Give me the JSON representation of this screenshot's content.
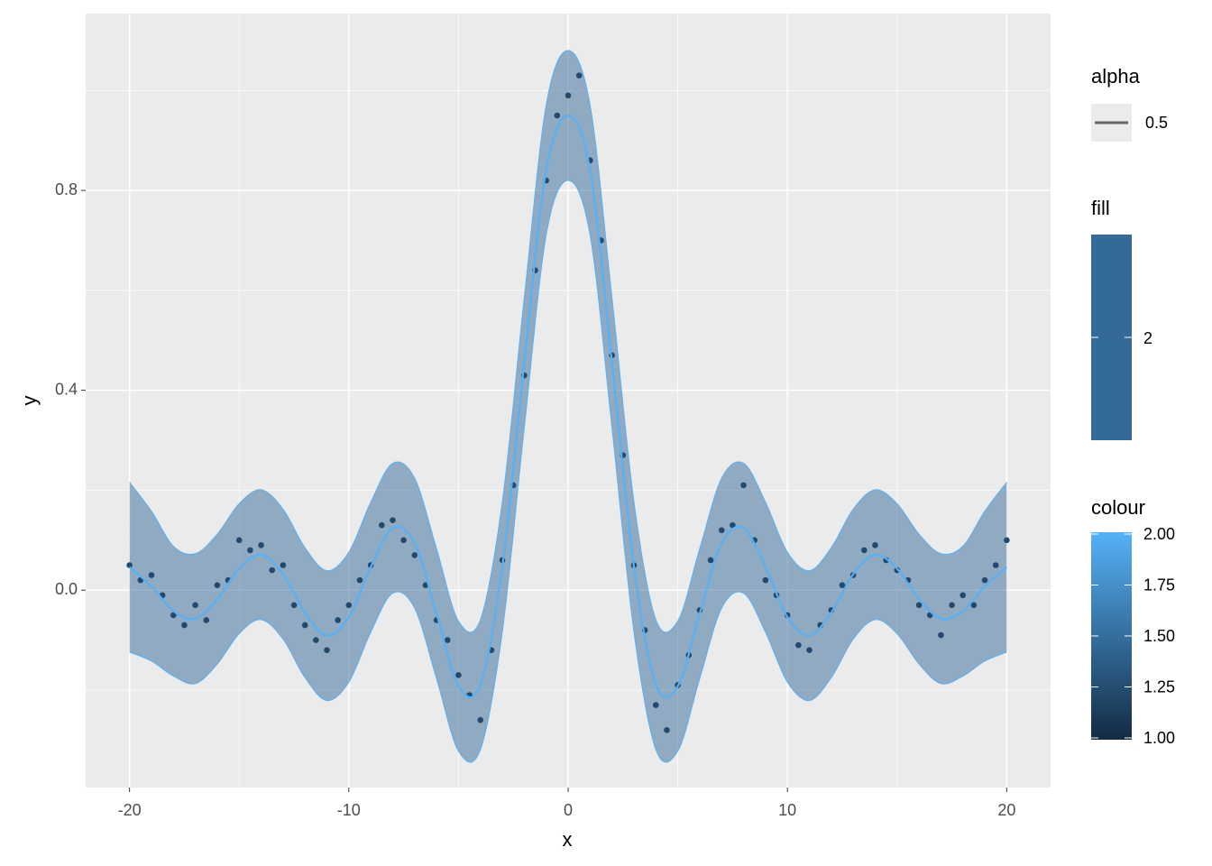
{
  "chart_data": {
    "type": "scatter",
    "x_label": "x",
    "y_label": "y",
    "xlim": [
      -22,
      22
    ],
    "ylim": [
      -0.395,
      1.154
    ],
    "xticks": [
      -20,
      -10,
      0,
      10,
      20
    ],
    "yticks": [
      {
        "value": 0,
        "label": "0.0"
      },
      0.4,
      0.8
    ],
    "grid": true,
    "points": {
      "color": "#23496e",
      "x": [
        -20,
        -19.5,
        -19,
        -18.5,
        -18,
        -17.5,
        -17,
        -16.5,
        -16,
        -15.5,
        -15,
        -14.5,
        -14,
        -13.5,
        -13,
        -12.5,
        -12,
        -11.5,
        -11,
        -10.5,
        -10,
        -9.5,
        -9,
        -8.5,
        -8,
        -7.5,
        -7,
        -6.5,
        -6,
        -5.5,
        -5,
        -4.5,
        -4,
        -3.5,
        -3,
        -2.5,
        -2,
        -1.5,
        -1,
        -0.5,
        0,
        0.5,
        1,
        1.5,
        2,
        2.5,
        3,
        3.5,
        4,
        4.5,
        5,
        5.5,
        6,
        6.5,
        7,
        7.5,
        8,
        8.5,
        9,
        9.5,
        10,
        10.5,
        11,
        11.5,
        12,
        12.5,
        13,
        13.5,
        14,
        14.5,
        15,
        15.5,
        16,
        16.5,
        17,
        17.5,
        18,
        18.5,
        19,
        19.5,
        20
      ],
      "values": [
        0.05,
        0.02,
        0.03,
        -0.01,
        -0.05,
        -0.07,
        -0.03,
        -0.06,
        0.01,
        0.02,
        0.1,
        0.08,
        0.09,
        0.04,
        0.05,
        -0.03,
        -0.07,
        -0.1,
        -0.12,
        -0.06,
        -0.03,
        0.02,
        0.05,
        0.13,
        0.14,
        0.1,
        0.07,
        0.01,
        -0.06,
        -0.1,
        -0.17,
        -0.21,
        -0.26,
        -0.12,
        0.06,
        0.21,
        0.43,
        0.64,
        0.82,
        0.95,
        0.99,
        1.03,
        0.86,
        0.7,
        0.47,
        0.27,
        0.05,
        -0.08,
        -0.23,
        -0.28,
        -0.19,
        -0.13,
        -0.04,
        0.06,
        0.12,
        0.13,
        0.21,
        0.1,
        0.02,
        -0.01,
        -0.05,
        -0.11,
        -0.12,
        -0.07,
        -0.04,
        0.01,
        0.03,
        0.08,
        0.09,
        0.06,
        0.04,
        0.02,
        -0.03,
        -0.05,
        -0.09,
        -0.03,
        -0.01,
        -0.03,
        0.02,
        0.05,
        0.1
      ]
    },
    "smooth": {
      "color": "#56b1f7",
      "ribbon_color": "#336a98",
      "x": [
        -20,
        -19,
        -18,
        -17,
        -16,
        -15,
        -14,
        -13,
        -12,
        -11,
        -10,
        -9,
        -8,
        -7,
        -6,
        -5,
        -4,
        -3,
        -2,
        -1,
        0,
        1,
        2,
        3,
        4,
        5,
        6,
        7,
        8,
        9,
        10,
        11,
        12,
        13,
        14,
        15,
        16,
        17,
        18,
        19,
        20
      ],
      "values": [
        0.046,
        0.008,
        -0.042,
        -0.057,
        -0.018,
        0.043,
        0.071,
        0.032,
        -0.045,
        -0.091,
        -0.054,
        0.046,
        0.124,
        0.094,
        -0.047,
        -0.192,
        -0.189,
        0.047,
        0.455,
        0.841,
        0.95,
        0.841,
        0.455,
        0.047,
        -0.189,
        -0.192,
        -0.047,
        0.094,
        0.124,
        0.046,
        -0.054,
        -0.091,
        -0.045,
        0.032,
        0.071,
        0.043,
        -0.018,
        -0.057,
        -0.042,
        0.008,
        0.046
      ],
      "lower": [
        -0.124,
        -0.142,
        -0.172,
        -0.187,
        -0.148,
        -0.087,
        -0.059,
        -0.098,
        -0.175,
        -0.221,
        -0.184,
        -0.084,
        -0.006,
        -0.036,
        -0.177,
        -0.322,
        -0.319,
        -0.083,
        0.325,
        0.711,
        0.82,
        0.711,
        0.325,
        -0.083,
        -0.319,
        -0.322,
        -0.177,
        -0.036,
        -0.006,
        -0.084,
        -0.184,
        -0.221,
        -0.175,
        -0.098,
        -0.059,
        -0.087,
        -0.148,
        -0.187,
        -0.172,
        -0.142,
        -0.124
      ],
      "upper": [
        0.216,
        0.158,
        0.088,
        0.073,
        0.112,
        0.173,
        0.201,
        0.162,
        0.085,
        0.039,
        0.076,
        0.176,
        0.254,
        0.224,
        0.083,
        -0.062,
        -0.059,
        0.177,
        0.585,
        0.971,
        1.08,
        0.971,
        0.585,
        0.177,
        -0.059,
        -0.062,
        0.083,
        0.224,
        0.254,
        0.176,
        0.076,
        0.039,
        0.085,
        0.162,
        0.201,
        0.173,
        0.112,
        0.073,
        0.088,
        0.158,
        0.216
      ]
    },
    "legends": {
      "alpha": {
        "title": "alpha",
        "labels": [
          0.5
        ],
        "color": "#666666"
      },
      "fill": {
        "title": "fill",
        "labels": [
          2
        ],
        "color": "#336a98"
      },
      "colour": {
        "title": "colour",
        "lim": [
          1,
          2
        ],
        "low": "#132b43",
        "high": "#56b1f7",
        "labels": [
          {
            "value": 1,
            "label": "1.00"
          },
          1.25,
          {
            "value": 1.5,
            "label": "1.50"
          },
          1.75,
          {
            "value": 2,
            "label": "2.00"
          }
        ]
      }
    }
  }
}
